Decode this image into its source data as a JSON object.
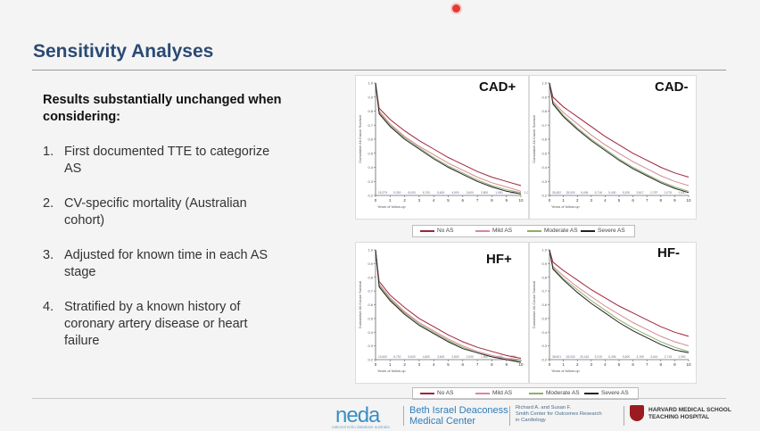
{
  "slide": {
    "title": "Sensitivity Analyses",
    "lead": "Results substantially unchanged when considering:",
    "items": [
      {
        "num": "1.",
        "text": "First documented TTE to categorize AS"
      },
      {
        "num": "2.",
        "text": "CV-specific mortality (Australian cohort)"
      },
      {
        "num": "3.",
        "text": "Adjusted for known time in each AS stage"
      },
      {
        "num": "4.",
        "text": "Stratified by a known history of coronary artery disease or heart failure"
      }
    ]
  },
  "legend": {
    "entries": [
      "No AS",
      "Mild AS",
      "Moderate AS",
      "Severe AS"
    ],
    "colors": [
      "#a0243a",
      "#d58a96",
      "#8fae6a",
      "#222222"
    ]
  },
  "chart_data": [
    {
      "type": "line",
      "label": "CAD+",
      "ylabel": "Cumulative All-Cause Survival",
      "ylim": [
        0.2,
        1.0
      ],
      "x": [
        0,
        0.25,
        1,
        2,
        3,
        4,
        5,
        6,
        7,
        8,
        9,
        10
      ],
      "series": [
        {
          "name": "No AS",
          "values": [
            1.0,
            0.82,
            0.74,
            0.66,
            0.59,
            0.53,
            0.47,
            0.42,
            0.37,
            0.33,
            0.3,
            0.27
          ]
        },
        {
          "name": "Mild AS",
          "values": [
            1.0,
            0.8,
            0.71,
            0.62,
            0.55,
            0.49,
            0.43,
            0.38,
            0.33,
            0.29,
            0.26,
            0.23
          ]
        },
        {
          "name": "Moderate AS",
          "values": [
            1.0,
            0.79,
            0.7,
            0.61,
            0.54,
            0.47,
            0.41,
            0.36,
            0.31,
            0.27,
            0.24,
            0.22
          ]
        },
        {
          "name": "Severe AS",
          "values": [
            1.0,
            0.78,
            0.69,
            0.6,
            0.53,
            0.46,
            0.4,
            0.35,
            0.3,
            0.26,
            0.23,
            0.21
          ]
        }
      ],
      "at_risk": [
        "15,379",
        "9,300",
        "8,000",
        "6,700",
        "5,600",
        "4,500",
        "3,600",
        "2,800",
        "1,900",
        "1,200",
        "1,030"
      ],
      "xlabel": "Years of follow-up"
    },
    {
      "type": "line",
      "label": "CAD-",
      "ylabel": "Cumulative All-Cause Survival",
      "ylim": [
        0.2,
        1.0
      ],
      "x": [
        0,
        0.25,
        1,
        2,
        3,
        4,
        5,
        6,
        7,
        8,
        9,
        10
      ],
      "series": [
        {
          "name": "No AS",
          "values": [
            1.0,
            0.9,
            0.83,
            0.76,
            0.69,
            0.62,
            0.56,
            0.5,
            0.45,
            0.4,
            0.36,
            0.33
          ]
        },
        {
          "name": "Mild AS",
          "values": [
            1.0,
            0.87,
            0.79,
            0.71,
            0.63,
            0.56,
            0.5,
            0.44,
            0.39,
            0.34,
            0.3,
            0.27
          ]
        },
        {
          "name": "Moderate AS",
          "values": [
            1.0,
            0.86,
            0.77,
            0.68,
            0.6,
            0.53,
            0.46,
            0.4,
            0.35,
            0.3,
            0.26,
            0.23
          ]
        },
        {
          "name": "Severe AS",
          "values": [
            1.0,
            0.85,
            0.76,
            0.67,
            0.59,
            0.52,
            0.45,
            0.39,
            0.34,
            0.29,
            0.25,
            0.22
          ]
        }
      ],
      "at_risk": [
        "35,452",
        "28,000",
        "6,496",
        "5,716",
        "5,490",
        "5,200",
        "3,817",
        "2,757",
        "2,075",
        "1,530",
        ""
      ],
      "xlabel": "Years of follow-up"
    },
    {
      "type": "line",
      "label": "HF+",
      "ylabel": "Cumulative All-Cause Survival",
      "ylim": [
        0.2,
        1.0
      ],
      "x": [
        0,
        0.25,
        1,
        2,
        3,
        4,
        5,
        6,
        7,
        8,
        9,
        10
      ],
      "series": [
        {
          "name": "No AS",
          "values": [
            1.0,
            0.77,
            0.67,
            0.58,
            0.5,
            0.44,
            0.38,
            0.33,
            0.29,
            0.26,
            0.23,
            0.21
          ]
        },
        {
          "name": "Mild AS",
          "values": [
            1.0,
            0.75,
            0.65,
            0.55,
            0.47,
            0.41,
            0.35,
            0.3,
            0.26,
            0.23,
            0.21,
            0.2
          ]
        },
        {
          "name": "Moderate AS",
          "values": [
            1.0,
            0.74,
            0.64,
            0.54,
            0.46,
            0.4,
            0.34,
            0.29,
            0.25,
            0.22,
            0.2,
            0.19
          ]
        },
        {
          "name": "Severe AS",
          "values": [
            1.0,
            0.73,
            0.63,
            0.53,
            0.45,
            0.39,
            0.33,
            0.28,
            0.25,
            0.22,
            0.2,
            0.18
          ]
        }
      ],
      "at_risk": [
        "10,600",
        "6,792",
        "5,600",
        "4,600",
        "3,600",
        "2,800",
        "2,000",
        "1,500",
        "1,000",
        "700",
        ""
      ],
      "xlabel": "Years of follow-up"
    },
    {
      "type": "line",
      "label": "HF-",
      "ylabel": "Cumulative All-Cause Survival",
      "ylim": [
        0.2,
        1.0
      ],
      "x": [
        0,
        0.25,
        1,
        2,
        3,
        4,
        5,
        6,
        7,
        8,
        9,
        10
      ],
      "series": [
        {
          "name": "No AS",
          "values": [
            1.0,
            0.91,
            0.85,
            0.78,
            0.71,
            0.65,
            0.59,
            0.54,
            0.49,
            0.44,
            0.4,
            0.37
          ]
        },
        {
          "name": "Mild AS",
          "values": [
            1.0,
            0.88,
            0.81,
            0.73,
            0.66,
            0.59,
            0.53,
            0.47,
            0.42,
            0.37,
            0.33,
            0.3
          ]
        },
        {
          "name": "Moderate AS",
          "values": [
            1.0,
            0.87,
            0.79,
            0.71,
            0.63,
            0.56,
            0.49,
            0.43,
            0.38,
            0.33,
            0.29,
            0.26
          ]
        },
        {
          "name": "Severe AS",
          "values": [
            1.0,
            0.86,
            0.78,
            0.69,
            0.61,
            0.54,
            0.47,
            0.41,
            0.36,
            0.31,
            0.27,
            0.25
          ]
        }
      ],
      "at_risk": [
        "38,601",
        "28,000",
        "20,415",
        "9,215",
        "6,306",
        "5,600",
        "4,159",
        "3,444",
        "2,715",
        "1,900",
        ""
      ],
      "xlabel": "Years of follow-up"
    }
  ],
  "footer": {
    "neda": "neda",
    "neda_sub": "national echo database australia",
    "bidmc_line1": "Beth Israel Deaconess",
    "bidmc_line2": "Medical Center",
    "smith_line1": "Richard A. and Susan F.",
    "smith_line2": "Smith Center for Outcomes Research",
    "smith_line3": "in Cardiology",
    "harvard_line1": "HARVARD MEDICAL SCHOOL",
    "harvard_line2": "TEACHING HOSPITAL"
  }
}
